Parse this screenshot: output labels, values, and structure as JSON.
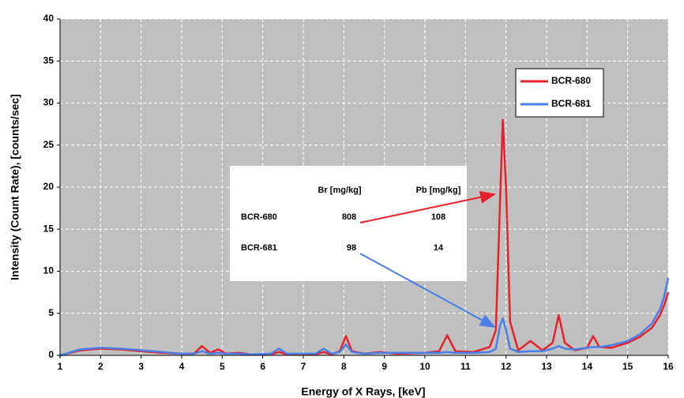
{
  "chart_data": {
    "type": "line",
    "xlabel": "Energy of X Rays, [keV]",
    "ylabel": "Intensity (Count Rate), [counts/sec]",
    "x": [
      1,
      1.5,
      2,
      2.5,
      3,
      3.5,
      4,
      4.3,
      4.5,
      4.7,
      4.9,
      5.1,
      5.4,
      5.7,
      6.2,
      6.4,
      6.6,
      7.3,
      7.5,
      7.7,
      7.9,
      8.05,
      8.2,
      8.5,
      8.9,
      9.3,
      10.0,
      10.35,
      10.55,
      10.75,
      11.2,
      11.6,
      11.75,
      11.85,
      11.92,
      12.0,
      12.1,
      12.3,
      12.6,
      12.9,
      13.15,
      13.3,
      13.45,
      13.7,
      14.0,
      14.15,
      14.3,
      14.6,
      15.0,
      15.3,
      15.6,
      15.8,
      15.9,
      16
    ],
    "series": [
      {
        "name": "BCR-680",
        "color": "#e8202a",
        "values": [
          0,
          0.6,
          0.8,
          0.7,
          0.5,
          0.3,
          0.2,
          0.2,
          1.1,
          0.3,
          0.7,
          0.2,
          0.3,
          0.1,
          0.1,
          0.4,
          0.1,
          0.1,
          0.4,
          0.1,
          0.5,
          2.3,
          0.5,
          0.2,
          0.4,
          0.2,
          0.3,
          0.5,
          2.4,
          0.5,
          0.4,
          1.0,
          3.0,
          18,
          28,
          20,
          4,
          0.6,
          1.7,
          0.6,
          1.5,
          4.8,
          1.5,
          0.6,
          0.9,
          2.3,
          1.0,
          0.9,
          1.5,
          2.2,
          3.3,
          4.8,
          6.0,
          7.5
        ]
      },
      {
        "name": "BCR-681",
        "color": "#4a7ee8",
        "values": [
          0,
          0.7,
          0.9,
          0.8,
          0.6,
          0.4,
          0.2,
          0.2,
          0.5,
          0.2,
          0.3,
          0.2,
          0.2,
          0.1,
          0.2,
          0.8,
          0.2,
          0.2,
          0.8,
          0.2,
          0.4,
          1.3,
          0.4,
          0.2,
          0.3,
          0.3,
          0.3,
          0.3,
          0.4,
          0.3,
          0.3,
          0.4,
          0.8,
          3.5,
          4.4,
          3.0,
          0.8,
          0.4,
          0.5,
          0.5,
          0.8,
          1.1,
          0.8,
          0.7,
          0.9,
          1.0,
          1.0,
          1.2,
          1.7,
          2.5,
          3.8,
          5.5,
          7.0,
          9.2
        ]
      }
    ],
    "xlim": [
      1,
      16
    ],
    "xticks": [
      1,
      2,
      3,
      4,
      5,
      6,
      7,
      8,
      9,
      10,
      11,
      12,
      13,
      14,
      15,
      16
    ],
    "ylim": [
      0,
      40
    ],
    "yticks": [
      0,
      5,
      10,
      15,
      20,
      25,
      30,
      35,
      40
    ],
    "grid": true,
    "legend": "upper right",
    "inset": {
      "header": [
        "Br [mg/kg]",
        "Pb [mg/kg]"
      ],
      "rows": [
        [
          "BCR-680",
          808,
          108
        ],
        [
          "BCR-681",
          98,
          14
        ]
      ]
    }
  }
}
